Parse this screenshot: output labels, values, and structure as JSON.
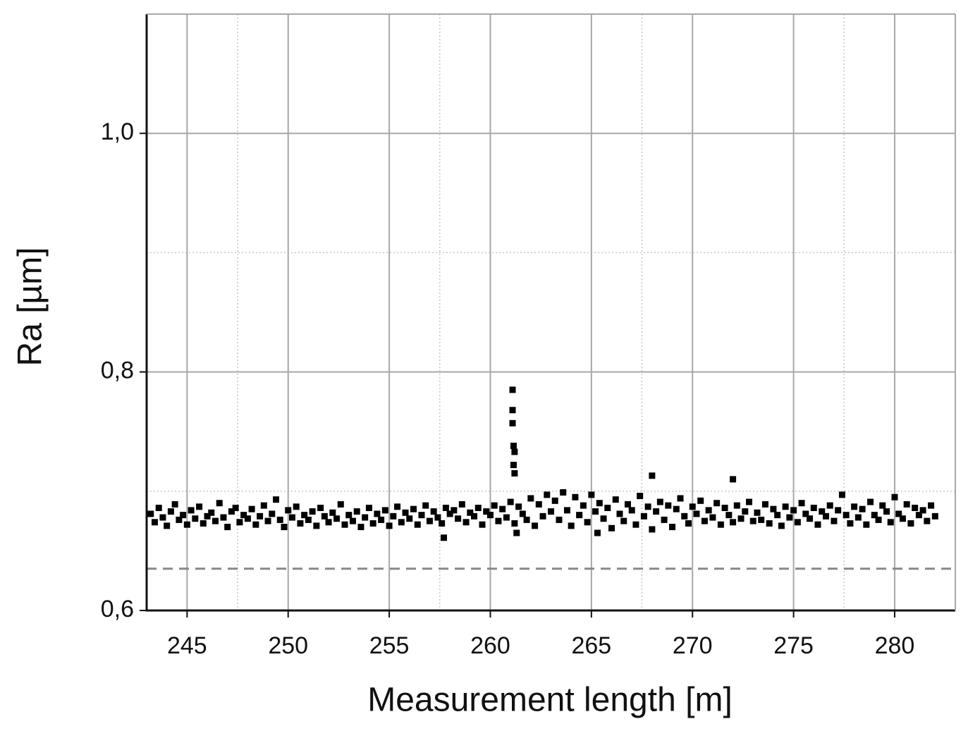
{
  "chart_data": {
    "type": "scatter",
    "xlabel": "Measurement length [m]",
    "ylabel": "Ra [µm]",
    "xlim": [
      243,
      283
    ],
    "ylim": [
      0.6,
      1.1
    ],
    "xticks": [
      245,
      250,
      255,
      260,
      265,
      270,
      275,
      280
    ],
    "yticks": [
      {
        "value": 0.6,
        "label": "0,6"
      },
      {
        "value": 0.8,
        "label": "0,8"
      },
      {
        "value": 1.0,
        "label": "1,0"
      }
    ],
    "minor_xgrid": [
      247.5,
      257.5,
      267.5,
      277.5
    ],
    "minor_ygrid": [
      0.7,
      0.9
    ],
    "grid": true,
    "reference_line": 0.635,
    "reference_color": "#888888",
    "series": [
      {
        "color": "#000000",
        "x": [
          243.2,
          243.4,
          243.6,
          243.8,
          244,
          244.2,
          244.4,
          244.6,
          244.8,
          245,
          245.2,
          245.4,
          245.6,
          245.8,
          246,
          246.2,
          246.4,
          246.6,
          246.8,
          247,
          247.2,
          247.4,
          247.6,
          247.8,
          248,
          248.2,
          248.4,
          248.6,
          248.8,
          249,
          249.2,
          249.4,
          249.6,
          249.8,
          250,
          250.2,
          250.4,
          250.6,
          250.8,
          251,
          251.2,
          251.4,
          251.6,
          251.8,
          252,
          252.2,
          252.4,
          252.6,
          252.8,
          253,
          253.2,
          253.4,
          253.6,
          253.8,
          254,
          254.2,
          254.4,
          254.6,
          254.8,
          255,
          255.2,
          255.4,
          255.6,
          255.8,
          256,
          256.2,
          256.4,
          256.6,
          256.8,
          257,
          257.2,
          257.4,
          257.6,
          257.8,
          258,
          258.2,
          258.4,
          258.6,
          258.8,
          259,
          259.2,
          259.4,
          259.6,
          259.8,
          260,
          260.2,
          260.4,
          260.6,
          260.8,
          261,
          261.2,
          261.4,
          261.6,
          261.8,
          262,
          262.2,
          262.4,
          262.6,
          262.8,
          263,
          263.2,
          263.4,
          263.6,
          263.8,
          264,
          264.2,
          264.4,
          264.6,
          264.8,
          265,
          265.2,
          265.4,
          265.6,
          265.8,
          266,
          266.2,
          266.4,
          266.6,
          266.8,
          267,
          267.2,
          267.4,
          267.6,
          267.8,
          268,
          268.2,
          268.4,
          268.6,
          268.8,
          269,
          269.2,
          269.4,
          269.6,
          269.8,
          270,
          270.2,
          270.4,
          270.6,
          270.8,
          271,
          271.2,
          271.4,
          271.6,
          271.8,
          272,
          272.2,
          272.4,
          272.6,
          272.8,
          273,
          273.2,
          273.4,
          273.6,
          273.8,
          274,
          274.2,
          274.4,
          274.6,
          274.8,
          275,
          275.2,
          275.4,
          275.6,
          275.8,
          276,
          276.2,
          276.4,
          276.6,
          276.8,
          277,
          277.2,
          277.4,
          277.6,
          277.8,
          278,
          278.2,
          278.4,
          278.6,
          278.8,
          279,
          279.2,
          279.4,
          279.6,
          279.8,
          280,
          280.2,
          280.4,
          280.6,
          280.8,
          281,
          281.2,
          281.4,
          281.6,
          281.8,
          282,
          261.1,
          261.1,
          261.1,
          261.15,
          261.2,
          261.15,
          261.2,
          257.7,
          261.3,
          265.3,
          268.0,
          272.0
        ],
        "values": [
          0.681,
          0.674,
          0.686,
          0.678,
          0.671,
          0.683,
          0.689,
          0.676,
          0.68,
          0.672,
          0.684,
          0.677,
          0.687,
          0.673,
          0.679,
          0.682,
          0.675,
          0.69,
          0.678,
          0.67,
          0.683,
          0.686,
          0.674,
          0.68,
          0.677,
          0.685,
          0.672,
          0.679,
          0.688,
          0.675,
          0.681,
          0.693,
          0.676,
          0.67,
          0.684,
          0.678,
          0.687,
          0.673,
          0.68,
          0.676,
          0.683,
          0.671,
          0.686,
          0.679,
          0.674,
          0.682,
          0.677,
          0.689,
          0.672,
          0.68,
          0.675,
          0.683,
          0.67,
          0.678,
          0.686,
          0.673,
          0.681,
          0.676,
          0.684,
          0.671,
          0.679,
          0.687,
          0.674,
          0.682,
          0.677,
          0.685,
          0.672,
          0.68,
          0.688,
          0.675,
          0.683,
          0.678,
          0.673,
          0.686,
          0.681,
          0.684,
          0.677,
          0.689,
          0.674,
          0.682,
          0.679,
          0.686,
          0.672,
          0.683,
          0.68,
          0.688,
          0.675,
          0.685,
          0.678,
          0.691,
          0.673,
          0.687,
          0.681,
          0.676,
          0.694,
          0.671,
          0.689,
          0.679,
          0.697,
          0.683,
          0.692,
          0.676,
          0.699,
          0.684,
          0.671,
          0.695,
          0.68,
          0.688,
          0.674,
          0.697,
          0.683,
          0.69,
          0.677,
          0.686,
          0.669,
          0.693,
          0.681,
          0.675,
          0.689,
          0.684,
          0.672,
          0.696,
          0.679,
          0.687,
          0.668,
          0.683,
          0.691,
          0.676,
          0.688,
          0.67,
          0.685,
          0.694,
          0.679,
          0.673,
          0.687,
          0.681,
          0.692,
          0.675,
          0.684,
          0.678,
          0.69,
          0.672,
          0.686,
          0.68,
          0.674,
          0.688,
          0.677,
          0.683,
          0.691,
          0.675,
          0.682,
          0.676,
          0.689,
          0.673,
          0.685,
          0.68,
          0.671,
          0.687,
          0.678,
          0.684,
          0.674,
          0.69,
          0.681,
          0.677,
          0.686,
          0.672,
          0.683,
          0.679,
          0.688,
          0.675,
          0.684,
          0.697,
          0.68,
          0.673,
          0.687,
          0.678,
          0.685,
          0.672,
          0.691,
          0.68,
          0.676,
          0.688,
          0.683,
          0.674,
          0.695,
          0.681,
          0.677,
          0.689,
          0.673,
          0.686,
          0.68,
          0.684,
          0.675,
          0.688,
          0.679,
          0.785,
          0.768,
          0.757,
          0.738,
          0.733,
          0.722,
          0.715,
          0.661,
          0.665,
          0.665,
          0.713,
          0.71
        ]
      }
    ]
  }
}
